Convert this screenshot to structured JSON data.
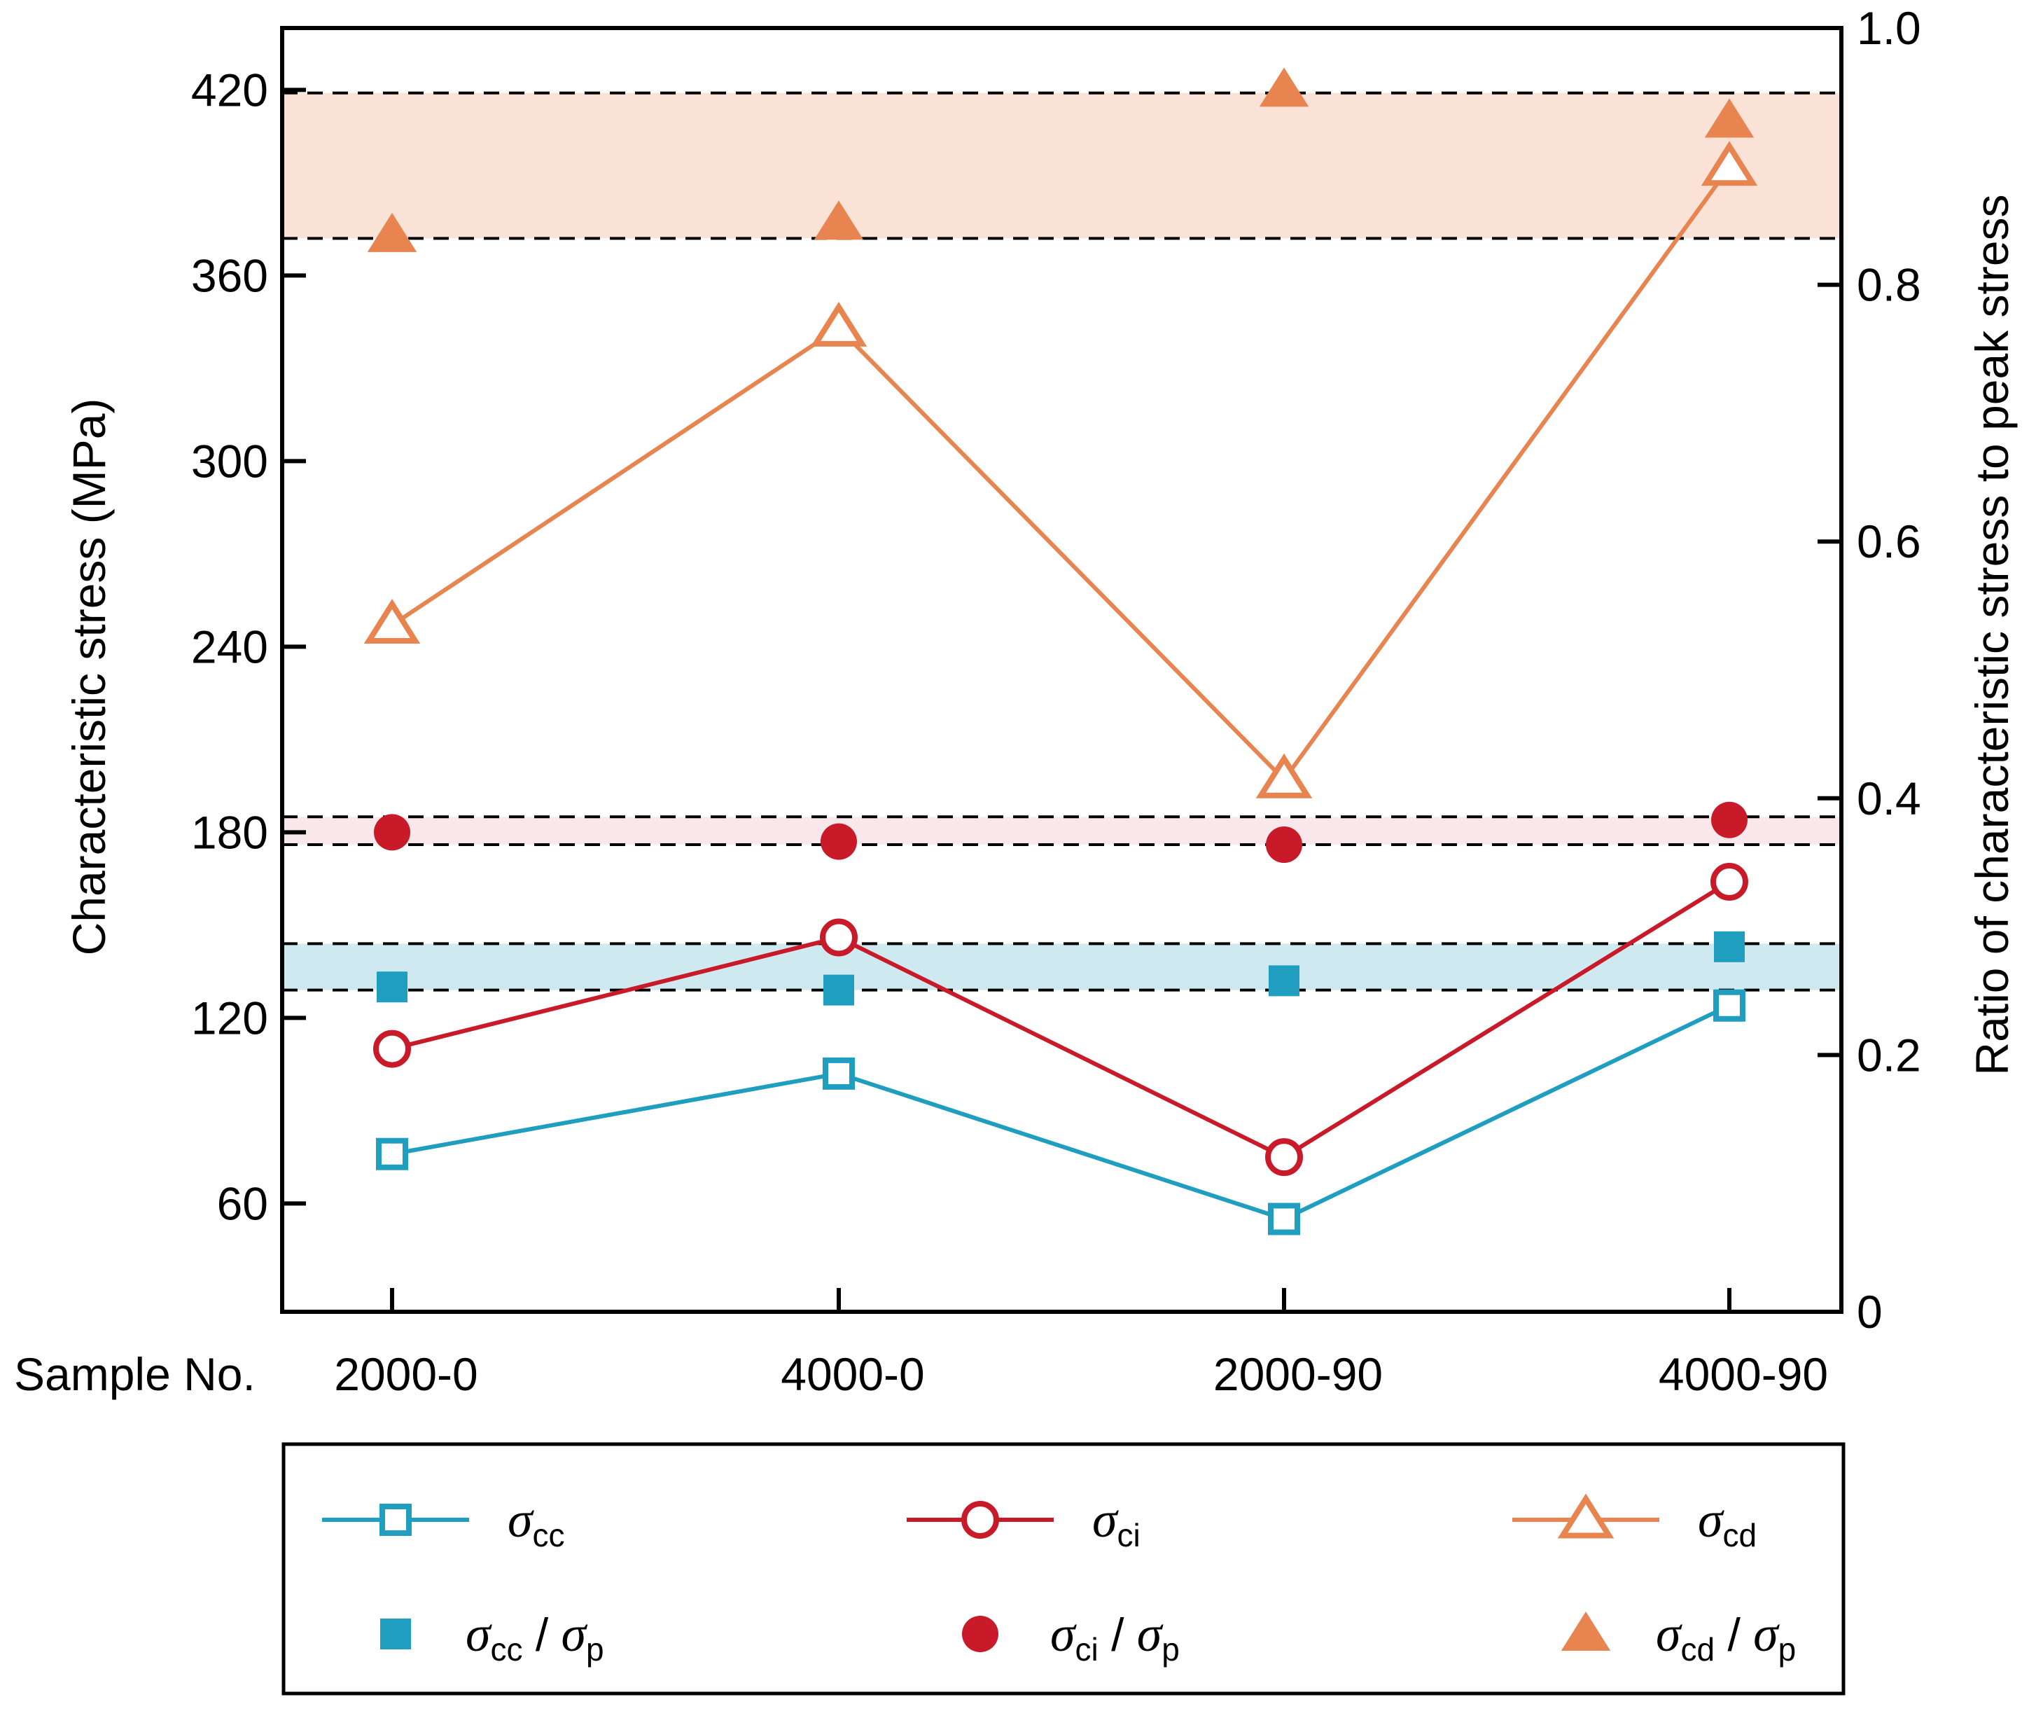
{
  "chart_data": {
    "type": "line",
    "xlabel": "Sample No.",
    "ylabel_left": "Characteristic stress (MPa)",
    "ylabel_right": "Ratio of characteristic stress to peak stress",
    "categories": [
      "2000-0",
      "4000-0",
      "2000-90",
      "4000-90"
    ],
    "left_axis": {
      "ylim": [
        25,
        440
      ],
      "ticks": [
        "60",
        "120",
        "180",
        "240",
        "300",
        "360",
        "420"
      ]
    },
    "right_axis": {
      "ylim": [
        0,
        1.0
      ],
      "ticks": [
        "0",
        "0.2",
        "0.4",
        "0.6",
        "0.8",
        "1.0"
      ]
    },
    "bands": [
      {
        "name": "sigma_cd_ratio_band",
        "axis": "left",
        "range": [
          372,
          419
        ],
        "fill": "#fae3d6"
      },
      {
        "name": "sigma_ci_ratio_band",
        "axis": "left",
        "range": [
          176,
          185
        ],
        "fill": "#f8e8ec"
      },
      {
        "name": "sigma_cc_ratio_band",
        "axis": "left",
        "range": [
          129,
          144
        ],
        "fill": "#cfe9f1"
      }
    ],
    "series": [
      {
        "name": "σcc",
        "sym": "σ",
        "sub": "cc",
        "axis": "left",
        "style": "line-open-square",
        "color": "#1f9ec0",
        "values": [
          76,
          102,
          55,
          124
        ]
      },
      {
        "name": "σci",
        "sym": "σ",
        "sub": "ci",
        "axis": "left",
        "style": "line-open-circle",
        "color": "#c81a28",
        "values": [
          110,
          146,
          75,
          164
        ]
      },
      {
        "name": "σcd",
        "sym": "σ",
        "sub": "cd",
        "axis": "left",
        "style": "line-open-triangle",
        "color": "#e8844f",
        "values": [
          247,
          343,
          197,
          395
        ]
      },
      {
        "name": "σcc / σp",
        "sym": "σ",
        "sub": "cc",
        "sym2": "σ",
        "sub2": "p",
        "axis": "left",
        "style": "filled-square",
        "color": "#1f9ec0",
        "values": [
          130,
          129,
          132,
          143
        ]
      },
      {
        "name": "σci / σp",
        "sym": "σ",
        "sub": "ci",
        "sym2": "σ",
        "sub2": "p",
        "axis": "left",
        "style": "filled-circle",
        "color": "#c81a28",
        "values": [
          180,
          177,
          176,
          184
        ]
      },
      {
        "name": "σcd / σp",
        "sym": "σ",
        "sub": "cd",
        "sym2": "σ",
        "sub2": "p",
        "axis": "left",
        "style": "filled-triangle",
        "color": "#e8844f",
        "values": [
          373,
          377,
          420,
          410
        ]
      }
    ],
    "legend_placement": "bottom"
  }
}
